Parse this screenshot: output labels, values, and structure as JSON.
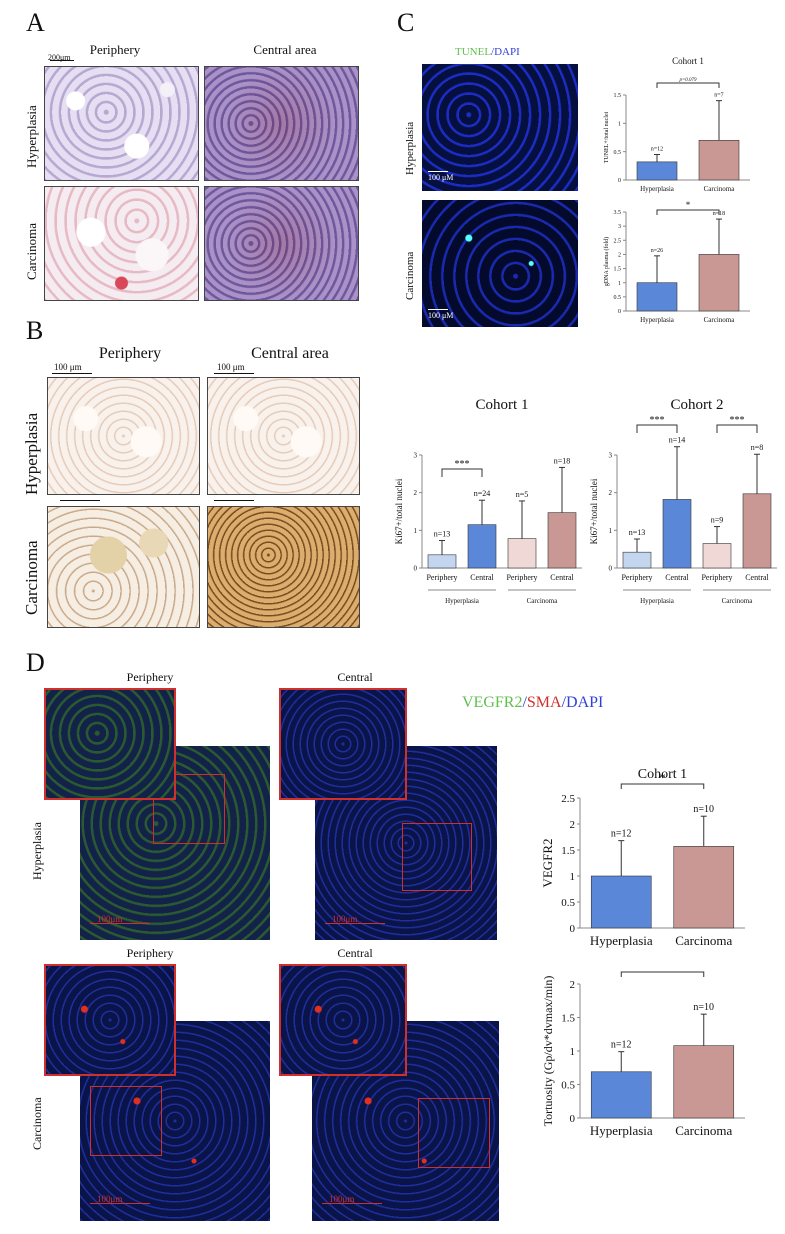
{
  "panels": {
    "a": {
      "letter": "A",
      "col_periphery": "Periphery",
      "col_central": "Central area",
      "row_hyperplasia": "Hyperplasia",
      "row_carcinoma": "Carcinoma",
      "scale": "200μm"
    },
    "b": {
      "letter": "B",
      "col_periphery": "Periphery",
      "col_central": "Central area",
      "row_hyperplasia": "Hyperplasia",
      "row_carcinoma": "Carcinoma",
      "scale1": "100 μm",
      "scale2": "100 μm"
    },
    "c": {
      "letter": "C",
      "stain_tunel": "TUNEL",
      "stain_slash": "/",
      "stain_dapi": "DAPI",
      "row_hyperplasia": "Hyperplasia",
      "row_carcinoma": "Carcinoma",
      "scale1": "100 μM",
      "scale2": "100 μM"
    },
    "d": {
      "letter": "D",
      "col_periphery1": "Periphery",
      "col_central1": "Central",
      "col_periphery2": "Periphery",
      "col_central2": "Central",
      "legend_vegfr2": "VEGFR2",
      "legend_slash1": "/",
      "legend_sma": "SMA",
      "legend_slash2": "/",
      "legend_dapi": "DAPI",
      "row_hyperplasia": "Hyperplasia",
      "row_carcinoma": "Carcinoma",
      "scale1": "100μm",
      "scale2": "100μm",
      "scale3": "100μm",
      "scale4": "100μm"
    }
  },
  "colors": {
    "hyperplasia_bar": "#5b87d8",
    "carcinoma_bar": "#c99794",
    "hyperplasia_periphery_bar": "#c4d6ef",
    "carcinoma_periphery_bar": "#efd8d6",
    "tunel_green": "#5fbf4f",
    "dapi_blue": "#2f3fd8",
    "sma_red": "#d0302c"
  },
  "chart_data": [
    {
      "id": "c_tunel",
      "type": "bar",
      "title": "Cohort 1",
      "ylabel": "TUNEL+/total nuclei",
      "categories": [
        "Hyperplasia",
        "Carcinoma"
      ],
      "values": [
        0.32,
        0.7
      ],
      "errors": [
        0.13,
        0.7
      ],
      "n_labels": [
        "n=12",
        "n=7"
      ],
      "ylim": [
        0,
        1.5
      ],
      "yticks": [
        "0",
        "0.5",
        "1",
        "1.5"
      ],
      "significance": "p=0.079"
    },
    {
      "id": "c_gdna",
      "type": "bar",
      "ylabel": "gDNA plasma (fold)",
      "categories": [
        "Hyperplasia",
        "Carcinoma"
      ],
      "values": [
        1.0,
        2.0
      ],
      "errors": [
        0.95,
        1.25
      ],
      "n_labels": [
        "n=26",
        "n=18"
      ],
      "ylim": [
        0,
        3.5
      ],
      "yticks": [
        "0",
        "0.5",
        "1",
        "1.5",
        "2",
        "2.5",
        "3",
        "3.5"
      ],
      "significance": "*"
    },
    {
      "id": "b_cohort1",
      "type": "bar",
      "title": "Cohort 1",
      "ylabel": "Ki67+/total nuclei",
      "categories": [
        "Periphery",
        "Central",
        "Periphery",
        "Central"
      ],
      "groups": [
        "Hyperplasia",
        "Carcinoma"
      ],
      "values": [
        0.35,
        1.15,
        0.78,
        1.47
      ],
      "errors": [
        0.38,
        0.65,
        1.0,
        1.2
      ],
      "n_labels": [
        "n=13",
        "n=24",
        "n=5",
        "n=18"
      ],
      "ylim": [
        0,
        3
      ],
      "yticks": [
        "0",
        "1",
        "2",
        "3"
      ],
      "significance": "***"
    },
    {
      "id": "b_cohort2",
      "type": "bar",
      "title": "Cohort 2",
      "ylabel": "Ki67+/total nuclei",
      "categories": [
        "Periphery",
        "Central",
        "Periphery",
        "Central"
      ],
      "groups": [
        "Hyperplasia",
        "Carcinoma"
      ],
      "values": [
        0.42,
        1.82,
        0.65,
        1.97
      ],
      "errors": [
        0.35,
        1.4,
        0.45,
        1.05
      ],
      "n_labels": [
        "n=13",
        "n=14",
        "n=9",
        "n=8"
      ],
      "ylim": [
        0,
        3
      ],
      "yticks": [
        "0",
        "1",
        "2",
        "3"
      ],
      "significance": [
        "***",
        "***"
      ]
    },
    {
      "id": "d_vegfr2",
      "type": "bar",
      "title": "Cohort 1",
      "ylabel": "VEGFR2",
      "categories": [
        "Hyperplasia",
        "Carcinoma"
      ],
      "values": [
        1.0,
        1.57
      ],
      "errors": [
        0.68,
        0.58
      ],
      "n_labels": [
        "n=12",
        "n=10"
      ],
      "ylim": [
        0,
        2.5
      ],
      "yticks": [
        "0",
        "0.5",
        "1",
        "1.5",
        "2",
        "2.5"
      ],
      "significance": "*"
    },
    {
      "id": "d_tortuosity",
      "type": "bar",
      "ylabel": "Tortuosity (Gp/dv*dvmax/min)",
      "categories": [
        "Hyperplasia",
        "Carcinoma"
      ],
      "values": [
        0.69,
        1.08
      ],
      "errors": [
        0.3,
        0.47
      ],
      "n_labels": [
        "n=12",
        "n=10"
      ],
      "ylim": [
        0,
        2
      ],
      "yticks": [
        "0",
        "0.5",
        "1",
        "1.5",
        "2"
      ],
      "significance": "*"
    }
  ]
}
